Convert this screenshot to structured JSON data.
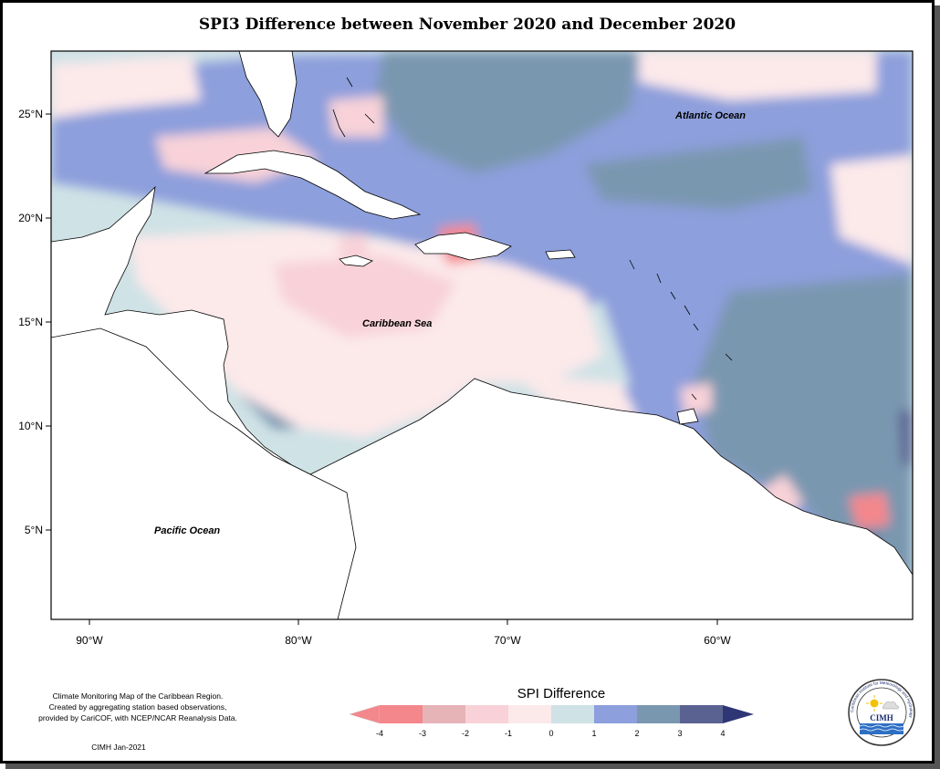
{
  "map": {
    "title": "SPI3 Difference between November 2020 and December 2020",
    "places": {
      "atlantic": "Atlantic Ocean",
      "caribbean": "Caribbean Sea",
      "pacific": "Pacific Ocean"
    },
    "lat_labels": [
      "25°N",
      "20°N",
      "15°N",
      "10°N",
      "5°N"
    ],
    "lon_labels": [
      "90°W",
      "80°W",
      "70°W",
      "60°W"
    ]
  },
  "legend": {
    "title": "SPI Difference",
    "ticks": [
      "-4",
      "-3",
      "-2",
      "-1",
      "0",
      "1",
      "2",
      "3",
      "4"
    ],
    "colors": [
      "#f4878c",
      "#e6b3b7",
      "#f8d2d8",
      "#fce9ea",
      "#cfe2e6",
      "#8d9fdc",
      "#7a97b0",
      "#5a6291",
      "#2f3675"
    ]
  },
  "caption": {
    "line1": "Climate Monitoring Map of the Caribbean Region.",
    "line2": "Created by aggregating station based observations,",
    "line3": "provided by CariCOF, with NCEP/NCAR Reanalysis Data.",
    "credit": "CIMH Jan-2021"
  },
  "logo": {
    "text": "CIMH",
    "ring_text": "Caribbean Institute for Meteorology and Hydrology"
  }
}
